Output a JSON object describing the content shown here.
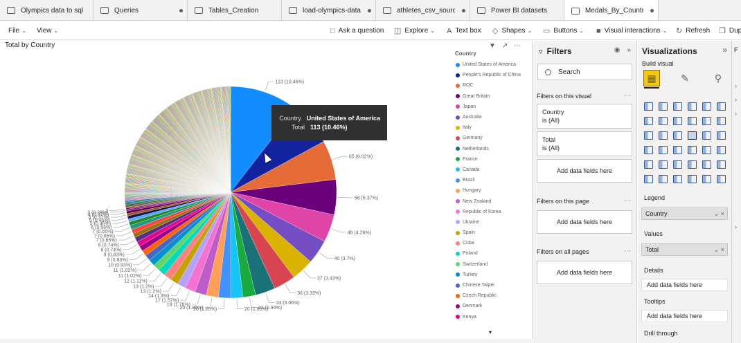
{
  "tabs": [
    {
      "label": "Olympics data to sql",
      "dot": false,
      "w": 135
    },
    {
      "label": "Queries",
      "dot": true,
      "w": 136
    },
    {
      "label": "Tables_Creation",
      "dot": false,
      "w": 136
    },
    {
      "label": "load-olympics-data...",
      "dot": true,
      "w": 136
    },
    {
      "label": "athletes_csv_source",
      "dot": true,
      "w": 136
    },
    {
      "label": "Power BI datasets",
      "dot": false,
      "w": 136
    },
    {
      "label": "Medals_By_Country",
      "dot": true,
      "w": 136,
      "active": true
    }
  ],
  "toolbar": {
    "file": "File",
    "view": "View",
    "ask": "Ask a question",
    "explore": "Explore",
    "textbox": "Text box",
    "shapes": "Shapes",
    "buttons": "Buttons",
    "visual_interactions": "Visual interactions",
    "refresh": "Refresh",
    "duplicate": "Dup"
  },
  "visual": {
    "title": "Total by Country",
    "legend_title": "Country"
  },
  "tooltip": {
    "k1": "Country",
    "v1": "United States of America",
    "k2": "Total",
    "v2": "113 (10.46%)"
  },
  "chart_data": {
    "type": "pie",
    "title": "Total by Country",
    "legend_title": "Country",
    "total": 1080,
    "labeled_slices": [
      {
        "label": "113 (10.46%)",
        "value": 113,
        "color": "#118dff"
      },
      {
        "label": "71 (6.57%)",
        "value": 71,
        "color": "#12239e"
      },
      {
        "label": "65 (6.02%)",
        "value": 65,
        "color": "#e66c37"
      },
      {
        "label": "58 (5.37%)",
        "value": 58,
        "color": "#6b007b"
      },
      {
        "label": "46 (4.26%)",
        "value": 46,
        "color": "#e044a7"
      },
      {
        "label": "40 (3.7%)",
        "value": 40,
        "color": "#744ec2"
      },
      {
        "label": "37 (3.43%)",
        "value": 37,
        "color": "#d9b300"
      },
      {
        "label": "36 (3.33%)",
        "value": 36,
        "color": "#d64550"
      },
      {
        "label": "33 (3.06%)",
        "value": 33,
        "color": "#197278"
      },
      {
        "label": "21 (1.94%)",
        "value": 21,
        "color": "#1aab40"
      },
      {
        "label": "20 (1.85%)",
        "value": 20,
        "color": "#15c6f4"
      },
      {
        "label": "20 (1.85%)",
        "value": 20,
        "color": "#4092ff"
      },
      {
        "label": "20 (1.85%)",
        "value": 20,
        "color": "#ffa058"
      },
      {
        "label": "19 (1.76%)",
        "value": 19,
        "color": "#be5dc9"
      },
      {
        "label": "17 (1.57%)",
        "value": 17,
        "color": "#f472d0"
      },
      {
        "label": "14 (1.3%)",
        "value": 14,
        "color": "#b5a1ff"
      },
      {
        "label": "13 (1.2%)",
        "value": 13,
        "color": "#c4a200"
      },
      {
        "label": "13 (1.2%)",
        "value": 13,
        "color": "#ff8080"
      },
      {
        "label": "12 (1.11%)",
        "value": 12,
        "color": "#00dbbc"
      },
      {
        "label": "11 (1.02%)",
        "value": 11,
        "color": "#5bd667"
      },
      {
        "label": "11 (1.02%)",
        "value": 11,
        "color": "#0091d5"
      },
      {
        "label": "10 (0.93%)",
        "value": 10,
        "color": "#4668c5"
      },
      {
        "label": "9 (0.83%)",
        "value": 9,
        "color": "#ff6300"
      },
      {
        "label": "9 (0.83%)",
        "value": 9,
        "color": "#99008a"
      },
      {
        "label": "8 (0.74%)",
        "value": 8,
        "color": "#ec008c"
      },
      {
        "label": "8 (0.74%)",
        "value": 8,
        "color": "#533285"
      },
      {
        "label": "7 (0.65%)",
        "value": 7,
        "color": "#99700a"
      },
      {
        "label": "7 (0.65%)",
        "value": 7,
        "color": "#ff4141"
      },
      {
        "label": "7 (0.65%)",
        "value": 7,
        "color": "#1f9a85"
      },
      {
        "label": "6 (0.56%)",
        "value": 6,
        "color": "#25891c"
      },
      {
        "label": "5 (0.46%)",
        "value": 5,
        "color": "#57a7ff"
      },
      {
        "label": "5 (0.46%)",
        "value": 5,
        "color": "#0a1a5c"
      },
      {
        "label": "4 (0.37%)",
        "value": 4,
        "color": "#ae4e1a"
      },
      {
        "label": "4 (0.37%)",
        "value": 4,
        "color": "#4b0054"
      },
      {
        "label": "3 (0.28%)",
        "value": 3,
        "color": "#a51570"
      },
      {
        "label": "2",
        "value": 2,
        "color": "#4b2aa0"
      },
      {
        "label": "",
        "value": 2,
        "color": "#7e6200"
      },
      {
        "label": "",
        "value": 2,
        "color": "#8c1f28"
      },
      {
        "label": "",
        "value": 2,
        "color": "#0e4d50"
      },
      {
        "label": "",
        "value": 2,
        "color": "#127a2d"
      },
      {
        "label": "",
        "value": 2,
        "color": "#0b7a99"
      },
      {
        "label": "",
        "value": 2,
        "color": "#2966a8"
      },
      {
        "label": "",
        "value": 1,
        "color": "#a35a2b"
      },
      {
        "label": "",
        "value": 1,
        "color": "#7d3d87"
      },
      {
        "label": "",
        "value": 1,
        "color": "#a3448f"
      },
      {
        "label": "",
        "value": 1,
        "color": "#5c4a99"
      },
      {
        "label": "",
        "value": 1,
        "color": "#8a7a1a"
      },
      {
        "label": "",
        "value": 1,
        "color": "#a3525a"
      },
      {
        "label": "",
        "value": 1,
        "color": "#3d7a7d"
      },
      {
        "label": "",
        "value": 1,
        "color": "#4f8a5b"
      },
      {
        "label": "",
        "value": 1,
        "color": "#5ba3b8"
      },
      {
        "label": "",
        "value": 1,
        "color": "#7391c7"
      }
    ],
    "legend": [
      "United States of America",
      "People's Republic of China",
      "ROC",
      "Great Britain",
      "Japan",
      "Australia",
      "Italy",
      "Germany",
      "Netherlands",
      "France",
      "Canada",
      "Brazil",
      "Hungary",
      "New Zealand",
      "Republic of Korea",
      "Ukraine",
      "Spain",
      "Cuba",
      "Poland",
      "Switzerland",
      "Turkey",
      "Chinese Taipei",
      "Czech Republic",
      "Denmark",
      "Kenya"
    ]
  },
  "filters": {
    "title": "Filters",
    "search": "Search",
    "on_visual": "Filters on this visual",
    "card1": {
      "field": "Country",
      "value": "is (All)"
    },
    "card2": {
      "field": "Total",
      "value": "is (All)"
    },
    "add": "Add data fields here",
    "on_page": "Filters on this page",
    "on_all": "Filters on all pages"
  },
  "viz": {
    "title": "Visualizations",
    "build": "Build visual",
    "legend": "Legend",
    "legend_field": "Country",
    "values": "Values",
    "values_field": "Total",
    "details": "Details",
    "tooltips": "Tooltips",
    "add": "Add data fields here",
    "drill": "Drill through"
  }
}
